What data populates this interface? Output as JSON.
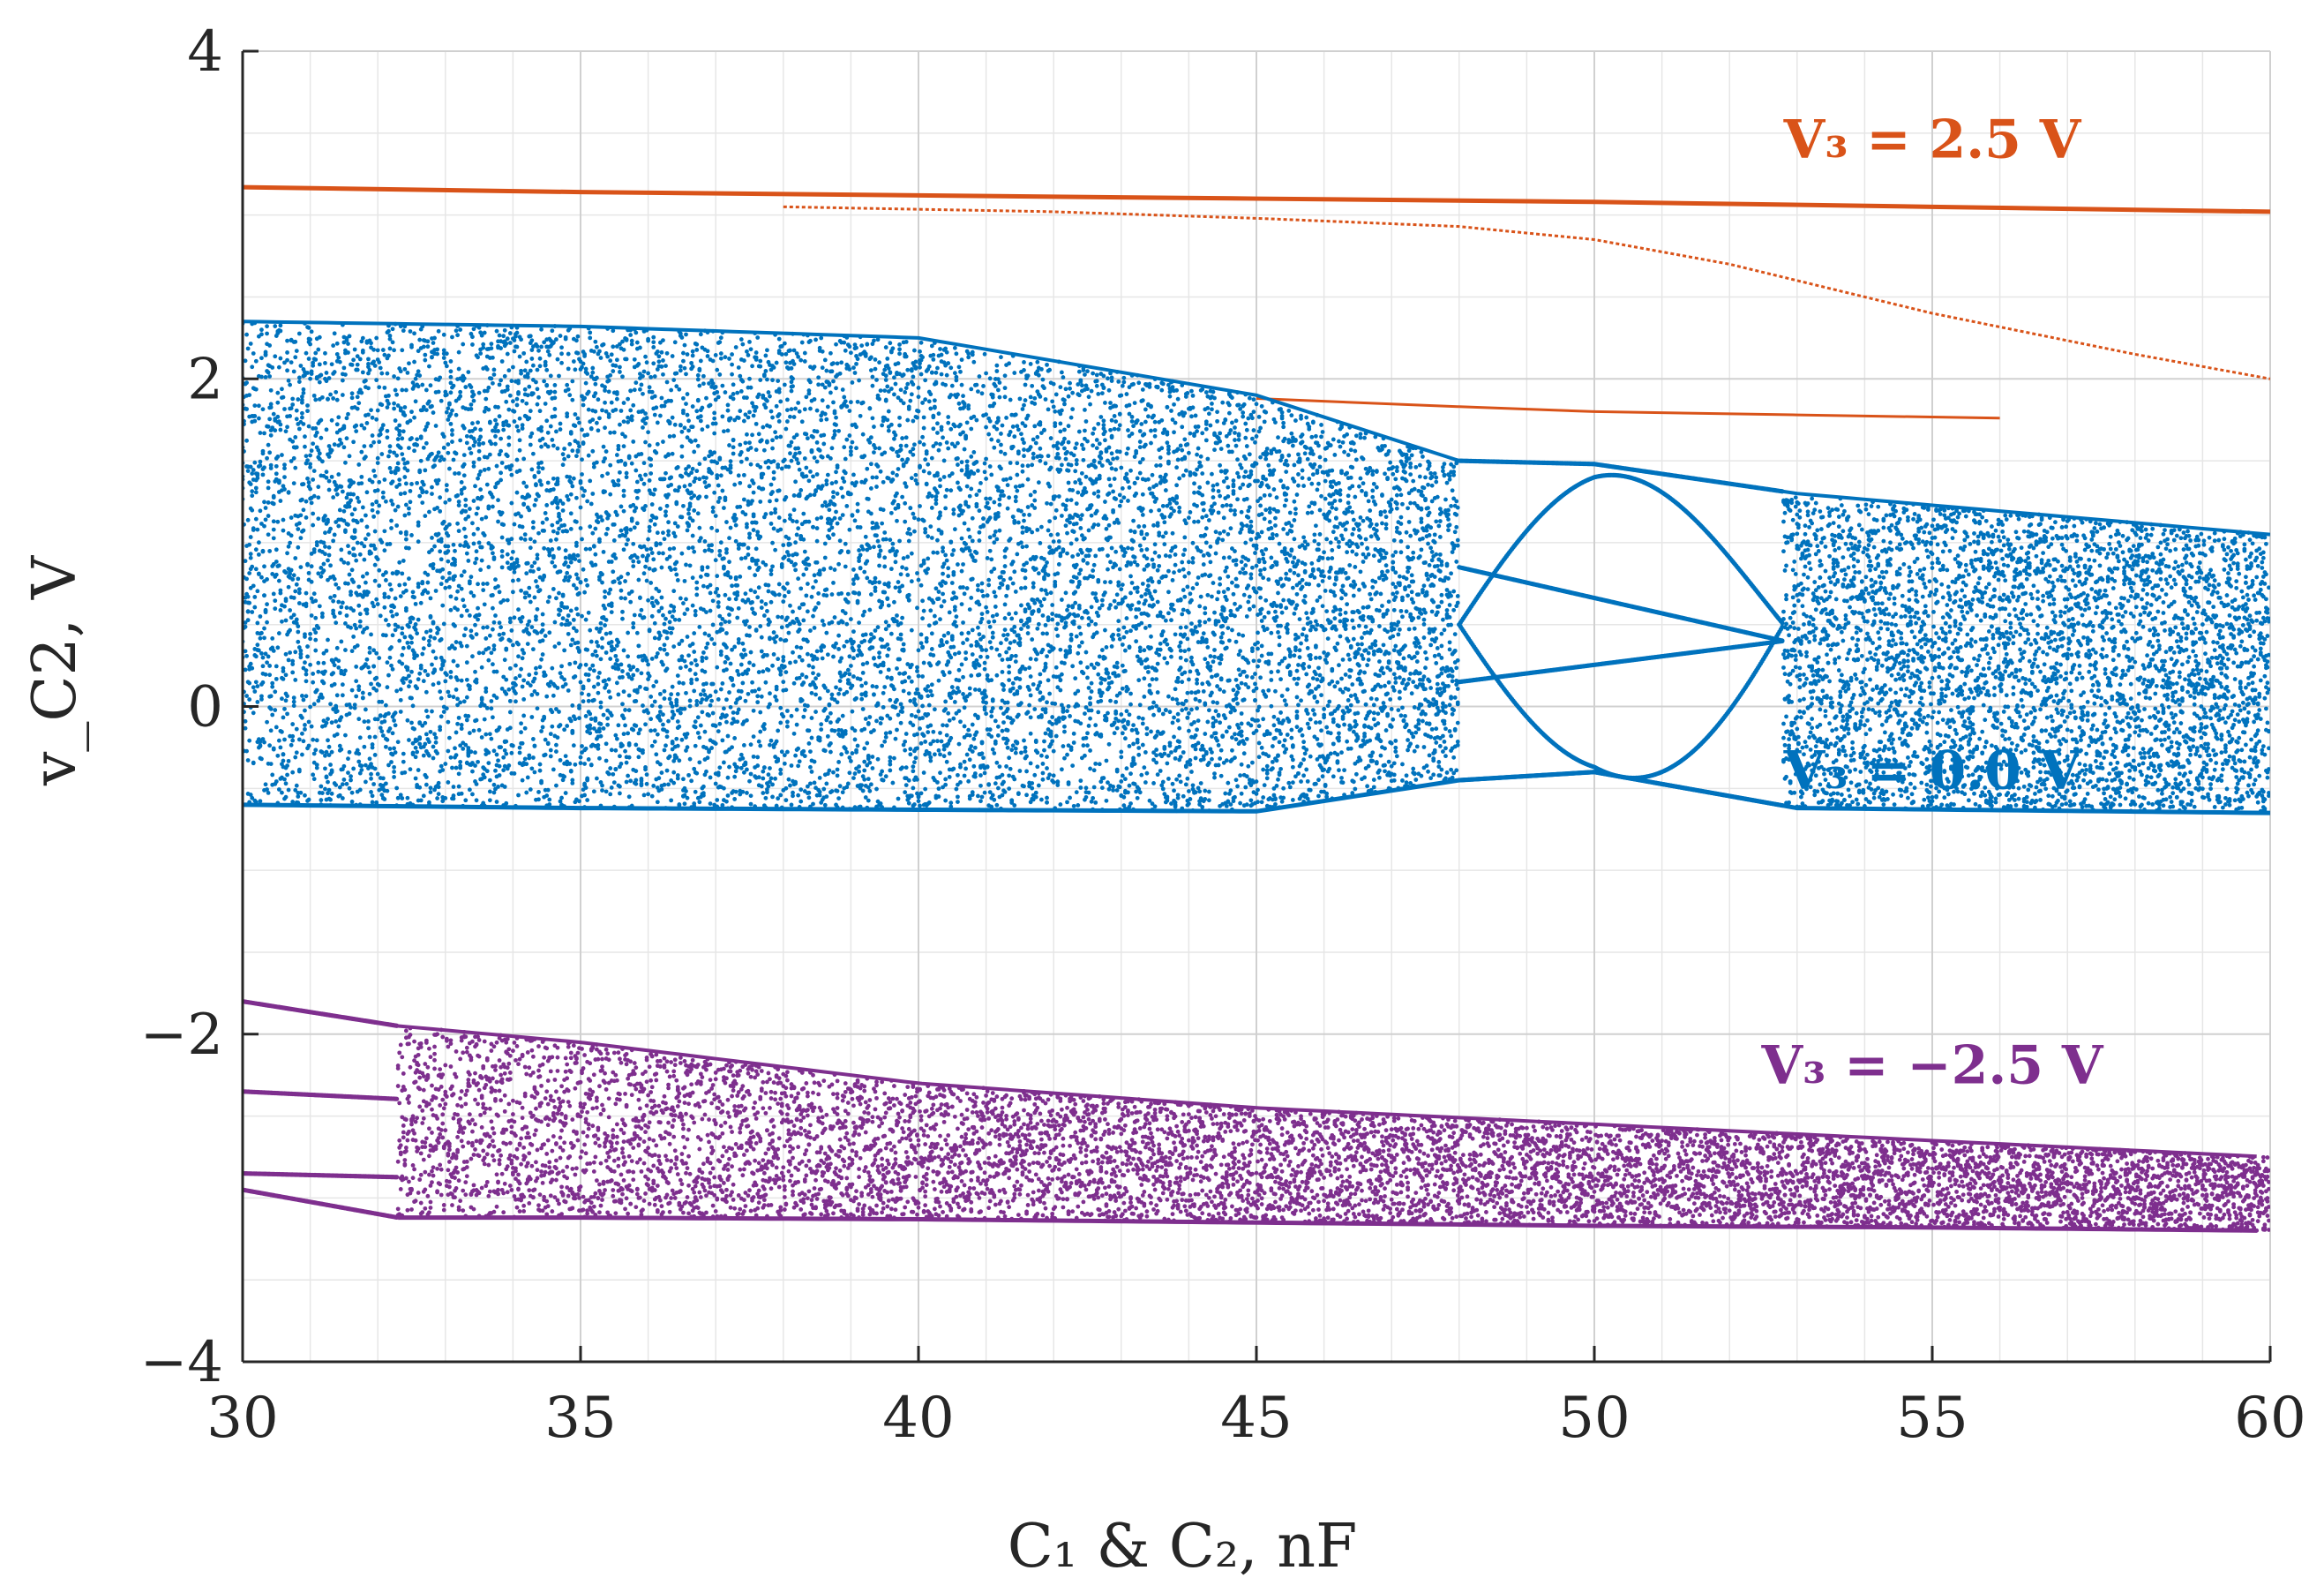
{
  "chart_data": {
    "type": "scatter",
    "title": "",
    "xlabel": "C₁ & C₂, nF",
    "ylabel": "v_C2, V",
    "xlim": [
      30,
      60
    ],
    "ylim": [
      -4,
      4
    ],
    "xticks": [
      "30",
      "35",
      "40",
      "45",
      "50",
      "55",
      "60"
    ],
    "yticks": [
      "4",
      "2",
      "0",
      "−2",
      "−4"
    ],
    "grid": true,
    "minor_grid": true,
    "series": [
      {
        "name": "V₃ = 2.5 V",
        "color": "#D95319",
        "description": "periodic branches",
        "branches": [
          {
            "x": [
              30,
              35,
              40,
              45,
              50,
              55,
              60
            ],
            "y": [
              3.17,
              3.14,
              3.12,
              3.1,
              3.08,
              3.05,
              3.02
            ]
          },
          {
            "x": [
              38,
              42,
              45,
              48,
              50,
              52,
              55,
              58,
              60
            ],
            "y": [
              3.05,
              3.02,
              2.98,
              2.93,
              2.85,
              2.7,
              2.4,
              2.15,
              2.0
            ]
          },
          {
            "x": [
              45,
              48,
              50,
              53,
              56
            ],
            "y": [
              1.88,
              1.83,
              1.8,
              1.78,
              1.76
            ]
          }
        ]
      },
      {
        "name": "V₃ = 0.0 V",
        "color": "#0072BD",
        "description": "chaotic band with periodic windows",
        "envelope_x": [
          30,
          35,
          40,
          45,
          48,
          50,
          53,
          60
        ],
        "envelope_top": [
          2.35,
          2.32,
          2.25,
          1.9,
          1.5,
          1.48,
          1.3,
          1.05
        ],
        "envelope_bottom": [
          -0.6,
          -0.62,
          -0.63,
          -0.64,
          -0.45,
          -0.4,
          -0.62,
          -0.65
        ],
        "periodic_window_x": [
          48,
          52.8
        ]
      },
      {
        "name": "V₃ = −2.5 V",
        "color": "#7E2F8E",
        "description": "chaotic band",
        "envelope_x": [
          30,
          32.3,
          35,
          40,
          45,
          50,
          55,
          60
        ],
        "envelope_top": [
          -1.8,
          -1.95,
          -2.05,
          -2.3,
          -2.45,
          -2.55,
          -2.65,
          -2.75
        ],
        "envelope_bottom": [
          -2.95,
          -3.12,
          -3.12,
          -3.13,
          -3.15,
          -3.17,
          -3.18,
          -3.2
        ]
      }
    ],
    "annotations": [
      {
        "text": "V₃ = 2.5 V",
        "x": 55,
        "y": 3.35,
        "color": "#D95319"
      },
      {
        "text": "V₃ = 0.0 V",
        "x": 55,
        "y": -0.5,
        "color": "#0072BD"
      },
      {
        "text": "V₃ = −2.5 V",
        "x": 55,
        "y": -2.3,
        "color": "#7E2F8E"
      }
    ]
  }
}
